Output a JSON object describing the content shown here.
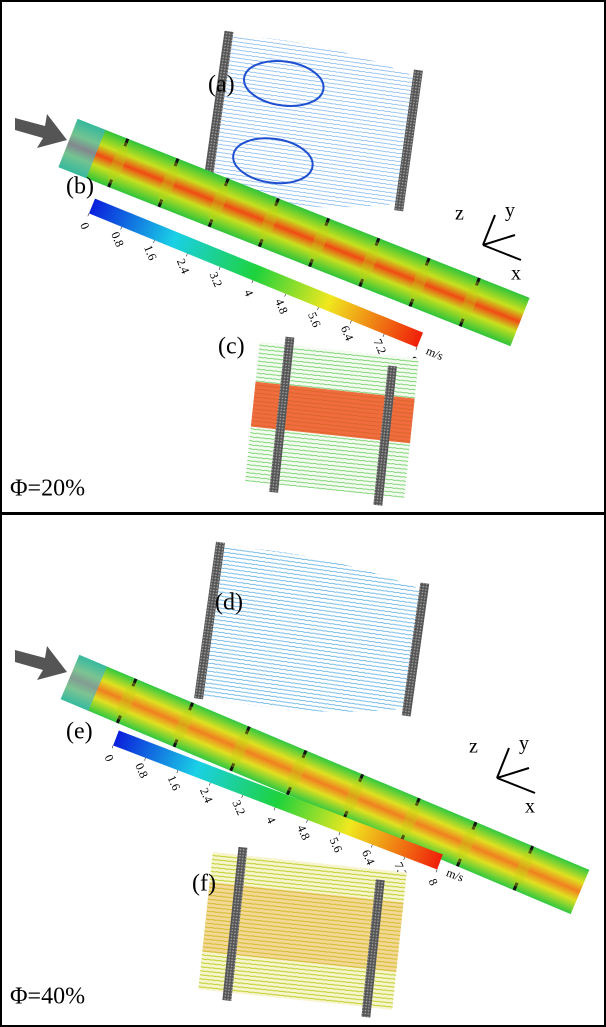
{
  "panels": [
    {
      "label": "Φ=20%",
      "insets": [
        "(a)",
        "(b)",
        "(c)"
      ],
      "colorbar": {
        "ticks": [
          0,
          0.8,
          1.6,
          2.4,
          3.2,
          4,
          4.8,
          5.6,
          6.4,
          7.2,
          8
        ],
        "unit": "m/s"
      },
      "axes": [
        "z",
        "y",
        "x"
      ]
    },
    {
      "label": "Φ=40%",
      "insets": [
        "(d)",
        "(e)",
        "(f)"
      ],
      "colorbar": {
        "ticks": [
          0,
          0.8,
          1.6,
          2.4,
          3.2,
          4,
          4.8,
          5.6,
          6.4,
          7.2,
          8
        ],
        "unit": "m/s"
      },
      "axes": [
        "z",
        "y",
        "x"
      ]
    }
  ]
}
